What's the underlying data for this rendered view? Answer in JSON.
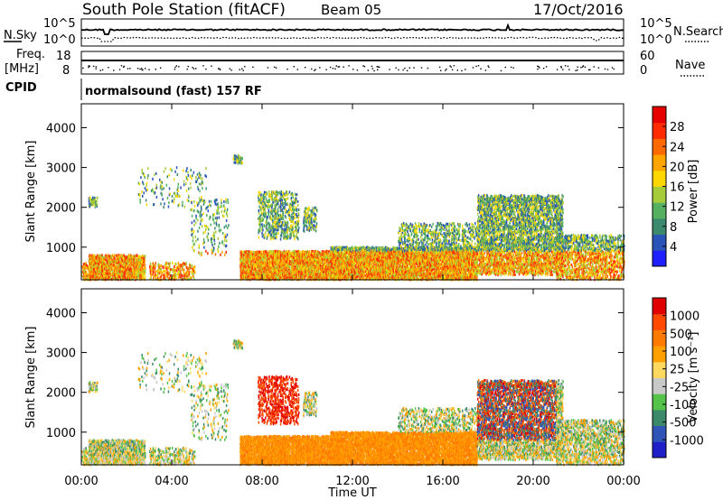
{
  "header": {
    "station": "South Pole Station (fitACF)",
    "beam": "Beam 05",
    "date": "17/Oct/2016"
  },
  "strips": {
    "nsky_label": "N.Sky",
    "nsky_ticks": [
      "10^5",
      "10^0"
    ],
    "nsearch_label": "N.Search",
    "nsearch_ticks": [
      "10^5",
      "10^0"
    ],
    "freq_label": "Freq.",
    "freq_unit": "[MHz]",
    "freq_ticks": [
      "18",
      "8"
    ],
    "nave_label": "Nave",
    "nave_ticks": [
      "60",
      "0"
    ],
    "cpid_label": "CPID",
    "cpid_text": "normalsound (fast) 157 RF"
  },
  "chart_data": [
    {
      "type": "heatmap",
      "name": "power",
      "ylabel": "Slant Range [km]",
      "y_ticks": [
        1000,
        2000,
        3000,
        4000
      ],
      "ylim": [
        180,
        4600
      ],
      "x_ticks": [
        "00:00",
        "04:00",
        "08:00",
        "12:00",
        "16:00",
        "20:00",
        "00:00"
      ],
      "xlim_hours": [
        0,
        24
      ],
      "colorbar": {
        "label": "Power [dB]",
        "ticks": [
          "4",
          "8",
          "12",
          "16",
          "20",
          "24",
          "28"
        ],
        "range": [
          0,
          32
        ],
        "colors": [
          "#1f1fff",
          "#2b54b8",
          "#3c8a6e",
          "#55b060",
          "#a6cc3a",
          "#ffd700",
          "#ffa500",
          "#ff6a00",
          "#ff2a00",
          "#e60000"
        ]
      }
    },
    {
      "type": "heatmap",
      "name": "velocity",
      "ylabel": "Slant Range [km]",
      "y_ticks": [
        1000,
        2000,
        3000,
        4000
      ],
      "ylim": [
        180,
        4600
      ],
      "x_ticks": [
        "00:00",
        "04:00",
        "08:00",
        "12:00",
        "16:00",
        "20:00",
        "00:00"
      ],
      "xlim_hours": [
        0,
        24
      ],
      "xlabel": "Time UT",
      "colorbar": {
        "label": "Velocity [m s⁻¹]",
        "ticks": [
          "1000",
          "500",
          "100",
          "25",
          "-25",
          "-100",
          "-500",
          "-1000"
        ],
        "colors": [
          "#2020c8",
          "#2f55b8",
          "#3a8a6a",
          "#55c24a",
          "#c8c8c8",
          "#ffd860",
          "#ffa000",
          "#ff7a00",
          "#ff4a00",
          "#e00000"
        ]
      }
    }
  ]
}
